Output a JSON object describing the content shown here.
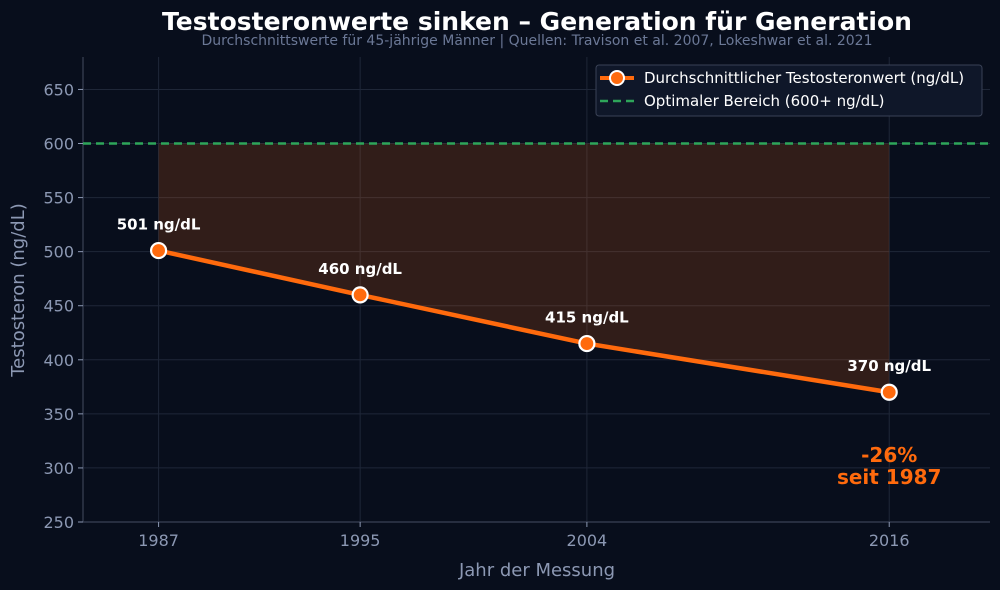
{
  "chart_data": {
    "type": "line",
    "title": "Testosteronwerte sinken – Generation für Generation",
    "subtitle": "Durchschnittswerte für 45-jährige Männer | Quellen: Travison et al. 2007, Lokeshwar et al. 2021",
    "xlabel": "Jahr der Messung",
    "ylabel": "Testosteron (ng/dL)",
    "x": [
      1987,
      1995,
      2004,
      2016
    ],
    "x_tick_labels": [
      "1987",
      "1995",
      "2004",
      "2016"
    ],
    "xlim": [
      1984,
      2020
    ],
    "ylim": [
      250,
      680
    ],
    "y_ticks": [
      250,
      300,
      350,
      400,
      450,
      500,
      550,
      600,
      650
    ],
    "y_tick_labels": [
      "250",
      "300",
      "350",
      "400",
      "450",
      "500",
      "550",
      "600",
      "650"
    ],
    "grid": true,
    "legend_position": "top-right",
    "series": [
      {
        "name": "Durchschnittlicher Testosteronwert (ng/dL)",
        "values": [
          501,
          460,
          415,
          370
        ],
        "color": "#ff6a0d",
        "data_labels": [
          "501 ng/dL",
          "460 ng/dL",
          "415 ng/dL",
          "370 ng/dL"
        ]
      }
    ],
    "reference_line": {
      "name": "Optimaler Bereich (600+ ng/dL)",
      "value": 600,
      "color": "#2ea55a"
    },
    "fill_between": {
      "from": "series",
      "to": 600,
      "color": "#ff6a0d"
    },
    "annotation": {
      "line1": "-26%",
      "line2": "seit 1987",
      "x": 2016,
      "y": 300,
      "color": "#ff6a0d"
    }
  }
}
